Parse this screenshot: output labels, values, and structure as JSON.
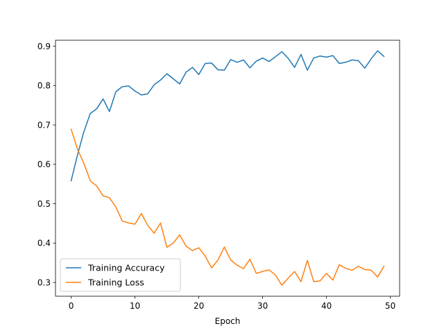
{
  "chart_data": {
    "type": "line",
    "title": "",
    "xlabel": "Epoch",
    "ylabel": "",
    "xlim": [
      -2.45,
      51.45
    ],
    "ylim": [
      0.265,
      0.915
    ],
    "xticks": [
      0,
      10,
      20,
      30,
      40,
      50
    ],
    "yticks": [
      0.3,
      0.4,
      0.5,
      0.6,
      0.7,
      0.8,
      0.9
    ],
    "grid": false,
    "legend_position": "lower-left",
    "x": [
      0,
      1,
      2,
      3,
      4,
      5,
      6,
      7,
      8,
      9,
      10,
      11,
      12,
      13,
      14,
      15,
      16,
      17,
      18,
      19,
      20,
      21,
      22,
      23,
      24,
      25,
      26,
      27,
      28,
      29,
      30,
      31,
      32,
      33,
      34,
      35,
      36,
      37,
      38,
      39,
      40,
      41,
      42,
      43,
      44,
      45,
      46,
      47,
      48,
      49
    ],
    "series": [
      {
        "name": "Training Accuracy",
        "color": "#1f77b4",
        "values": [
          0.558,
          0.624,
          0.683,
          0.729,
          0.741,
          0.766,
          0.734,
          0.784,
          0.797,
          0.799,
          0.786,
          0.776,
          0.779,
          0.802,
          0.814,
          0.83,
          0.817,
          0.804,
          0.834,
          0.846,
          0.828,
          0.856,
          0.857,
          0.84,
          0.839,
          0.866,
          0.859,
          0.865,
          0.845,
          0.862,
          0.87,
          0.861,
          0.873,
          0.886,
          0.869,
          0.846,
          0.879,
          0.839,
          0.87,
          0.875,
          0.872,
          0.876,
          0.856,
          0.859,
          0.865,
          0.863,
          0.844,
          0.868,
          0.888,
          0.874
        ]
      },
      {
        "name": "Training Loss",
        "color": "#ff7f0e",
        "values": [
          0.689,
          0.638,
          0.602,
          0.558,
          0.545,
          0.52,
          0.515,
          0.492,
          0.456,
          0.451,
          0.448,
          0.475,
          0.445,
          0.425,
          0.451,
          0.389,
          0.4,
          0.421,
          0.392,
          0.381,
          0.388,
          0.367,
          0.337,
          0.357,
          0.39,
          0.357,
          0.344,
          0.335,
          0.359,
          0.323,
          0.328,
          0.332,
          0.319,
          0.293,
          0.311,
          0.328,
          0.302,
          0.356,
          0.302,
          0.304,
          0.323,
          0.306,
          0.345,
          0.336,
          0.331,
          0.341,
          0.333,
          0.331,
          0.314,
          0.341
        ]
      }
    ]
  }
}
